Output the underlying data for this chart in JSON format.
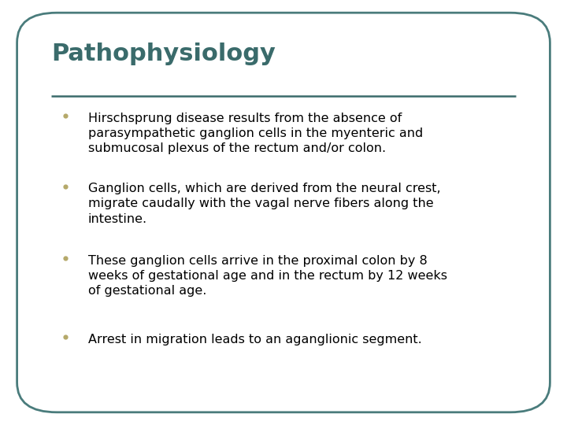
{
  "title": "Pathophysiology",
  "title_color": "#3a6b6b",
  "title_fontsize": 22,
  "line_color": "#3a6b6b",
  "bullet_color": "#b5a96a",
  "text_color": "#000000",
  "background_color": "#ffffff",
  "border_color": "#4a7c7c",
  "bullet_points": [
    "Hirschsprung disease results from the absence of\nparasympathetic ganglion cells in the myenteric and\nsubmucosal plexus of the rectum and/or colon.",
    "Ganglion cells, which are derived from the neural crest,\nmigrate caudally with the vagal nerve fibers along the\nintestine.",
    "These ganglion cells arrive in the proximal colon by 8\nweeks of gestational age and in the rectum by 12 weeks\nof gestational age.",
    "Arrest in migration leads to an aganglionic segment."
  ],
  "text_fontsize": 11.5,
  "figsize": [
    7.2,
    5.4
  ],
  "dpi": 100
}
